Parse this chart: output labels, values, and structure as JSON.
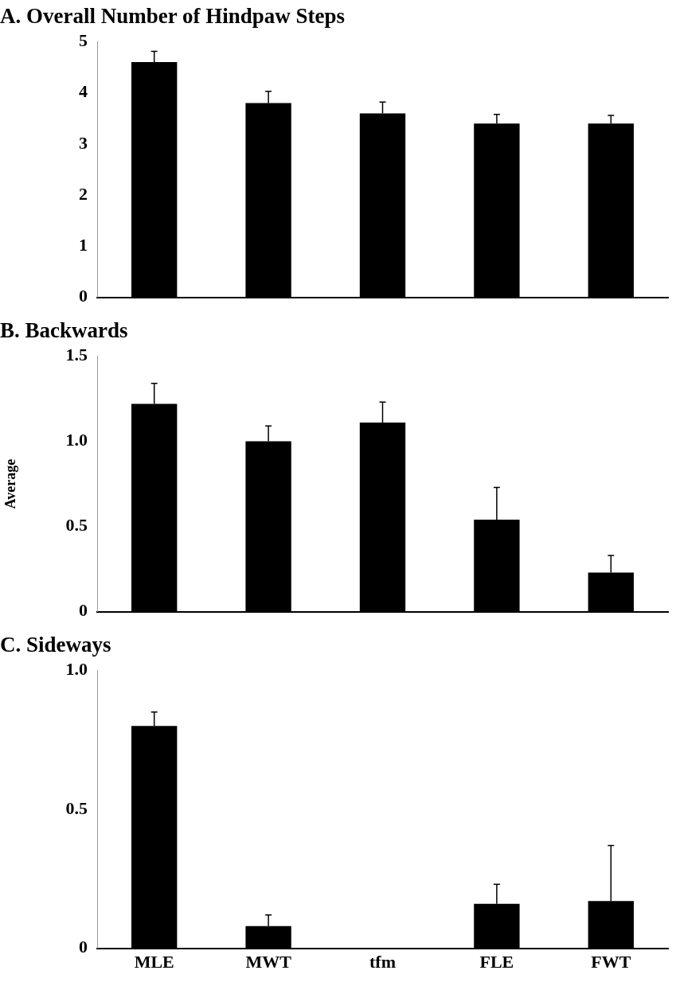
{
  "chart_data": [
    {
      "type": "bar",
      "title": "A. Overall Number of Hindpaw Steps",
      "categories": [
        null,
        null,
        null,
        null,
        null
      ],
      "values": [
        4.6,
        3.8,
        3.6,
        3.4,
        3.4
      ],
      "errors": [
        0.21,
        0.23,
        0.22,
        0.18,
        0.16
      ],
      "color": "#000000",
      "ylim": [
        0,
        5
      ],
      "yticks": [
        0,
        1,
        2,
        3,
        4,
        5
      ],
      "tick_labels": "y",
      "grid": false
    },
    {
      "type": "bar",
      "title": "B. Backwards",
      "ylabel": "Average",
      "categories": [
        null,
        null,
        null,
        null,
        null
      ],
      "values": [
        1.22,
        1.0,
        1.11,
        0.54,
        0.23
      ],
      "errors": [
        0.12,
        0.09,
        0.12,
        0.19,
        0.1
      ],
      "color": "#000000",
      "ylim": [
        0,
        1.5
      ],
      "yticks": [
        0,
        {
          "value": 0.5,
          "label": "0.5"
        },
        {
          "value": 1,
          "label": "1.0"
        },
        {
          "value": 1.5,
          "label": "1.5"
        }
      ],
      "tick_labels": "y",
      "grid": false
    },
    {
      "type": "bar",
      "title": "C. Sideways",
      "categories": [
        "MLE",
        "MWT",
        "tfm",
        "FLE",
        "FWT"
      ],
      "values": [
        0.8,
        0.08,
        0,
        0.16,
        0.17
      ],
      "errors": [
        0.05,
        0.04,
        null,
        0.07,
        0.2
      ],
      "color": "#000000",
      "ylim": [
        0,
        1
      ],
      "yticks": [
        0,
        {
          "value": 0.5,
          "label": "0.5"
        },
        {
          "value": 1,
          "label": "1.0"
        }
      ],
      "grid": false
    }
  ]
}
